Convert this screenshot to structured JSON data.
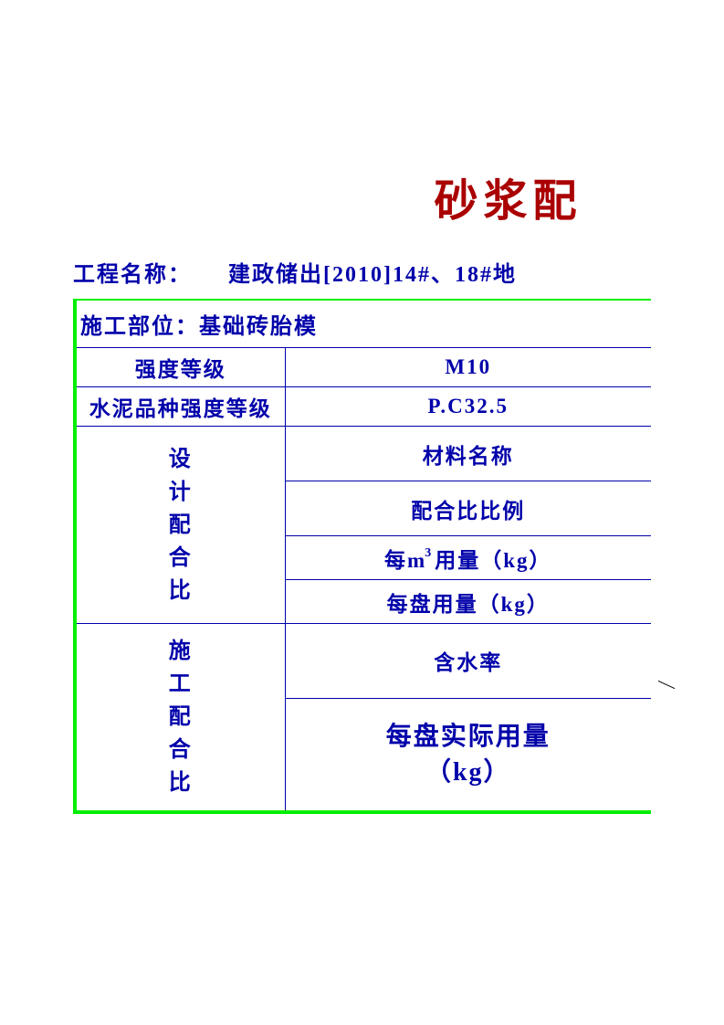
{
  "title": "砂浆配",
  "project": {
    "label": "工程名称：",
    "value": "建政储出[2010]14#、18#地"
  },
  "construction_part": {
    "label": "施工部位：",
    "value": "基础砖胎模"
  },
  "rows": {
    "strength_grade": {
      "label": "强度等级",
      "value": "M10"
    },
    "cement_grade": {
      "label": "水泥品种强度等级",
      "value": "P.C32.5"
    }
  },
  "design_mix": {
    "label": "设计配合比",
    "items": {
      "material_name": "材料名称",
      "mix_ratio": "配合比比例",
      "per_m3_prefix": "每m",
      "per_m3_suffix": "用量（kg）",
      "per_batch": "每盘用量（kg）"
    }
  },
  "construction_mix": {
    "label": "施工配合比",
    "items": {
      "moisture": "含水率",
      "actual_per_batch_line1": "每盘实际用量",
      "actual_per_batch_line2": "（kg）"
    }
  },
  "colors": {
    "title_color": "#aa0000",
    "text_color": "#0000aa",
    "border_color": "#0000aa",
    "outer_border_color": "#00ee00",
    "background": "#ffffff"
  }
}
